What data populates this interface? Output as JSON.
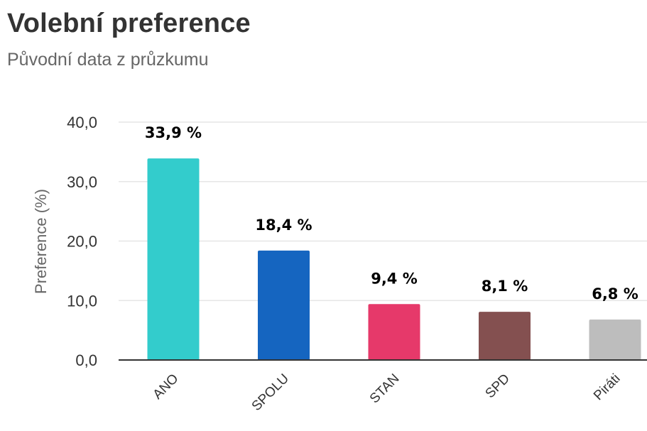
{
  "chart_data": {
    "type": "bar",
    "title": "Volební preference",
    "subtitle": "Původní data z průzkumu",
    "xlabel": "",
    "ylabel": "Preference (%)",
    "ylim": [
      0,
      40
    ],
    "yticks": [
      0,
      10,
      20,
      30,
      40
    ],
    "ytick_labels": [
      "0,0",
      "10,0",
      "20,0",
      "30,0",
      "40,0"
    ],
    "categories": [
      "ANO",
      "SPOLU",
      "STAN",
      "SPD",
      "Piráti"
    ],
    "values": [
      33.9,
      18.4,
      9.4,
      8.1,
      6.8
    ],
    "data_labels": [
      "33,9 %",
      "18,4 %",
      "9,4 %",
      "8,1 %",
      "6,8 %"
    ],
    "colors": [
      "#33cccc",
      "#1565c0",
      "#e6396a",
      "#845050",
      "#bdbdbd"
    ],
    "grid": true,
    "legend": "none"
  }
}
